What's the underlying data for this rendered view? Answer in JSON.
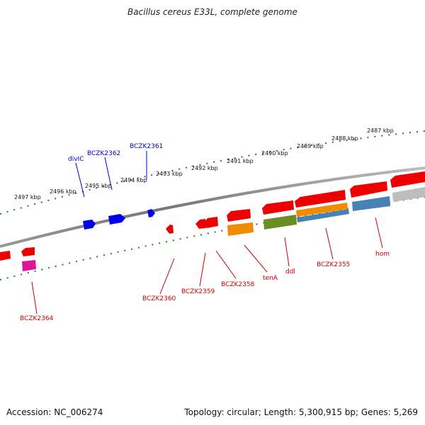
{
  "title": "Bacillus cereus E33L, complete genome",
  "footer": {
    "accession": "Accession: NC_006274",
    "summary": "Topology: circular; Length: 5,300,915 bp; Genes: 5,269"
  },
  "colors": {
    "background": "#ffffff",
    "backbone": "#808080",
    "tick": "#2a7a2a",
    "label_forward": "#0000cc",
    "label_reverse": "#cc0000",
    "gene_blue": "#0000ee",
    "gene_red": "#ee0000",
    "gene_orange": "#f08c00",
    "gene_olive": "#6b8e23",
    "gene_steel": "#4682b4",
    "gene_magenta": "#e0149a",
    "gene_gray": "#bdbdbd"
  },
  "scale_labels": [
    "2497 kbp",
    "2496 kbp",
    "2495 kbp",
    "2494 kbp",
    "2493 kbp",
    "2492 kbp",
    "2491 kbp",
    "2490 kbp",
    "2489 kbp",
    "2488 kbp",
    "2487 kbp"
  ],
  "gene_labels": {
    "forward": [
      "divIC",
      "BCZK2362",
      "BCZK2361"
    ],
    "reverse": [
      "BCZK2364",
      "BCZK2360",
      "BCZK2359",
      "BCZK2358",
      "tenA",
      "ddl",
      "BCZK2355",
      "hom"
    ]
  }
}
